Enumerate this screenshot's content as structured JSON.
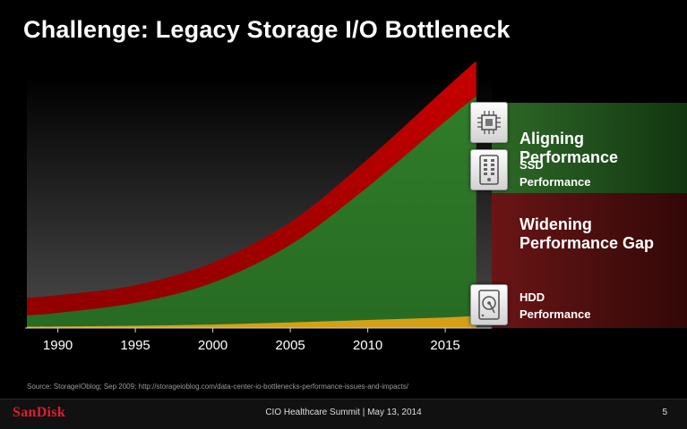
{
  "title": "Challenge: Legacy Storage I/O Bottleneck",
  "labels": {
    "aligning": "Aligning Performance",
    "ssd": "SSD Performance",
    "widening": "Widening Performance Gap",
    "hdd": "HDD Performance"
  },
  "icons": {
    "cpu": "cpu-icon",
    "ssd": "ssd-icon",
    "hdd": "hdd-icon"
  },
  "chart_data": {
    "type": "area",
    "x": [
      1988,
      1990,
      1995,
      2000,
      2005,
      2010,
      2015,
      2017
    ],
    "xticks": [
      "1990",
      "1995",
      "2000",
      "2005",
      "2010",
      "2015"
    ],
    "xlim": [
      1988,
      2018
    ],
    "ylim": [
      0,
      100
    ],
    "series": [
      {
        "name": "",
        "role": "cpu-gap",
        "color": "#c00000",
        "values": [
          12,
          13,
          17,
          26,
          42,
          67,
          95,
          106
        ]
      },
      {
        "name": "",
        "role": "ssd",
        "color": "#2f7a2a",
        "values": [
          5,
          6,
          10,
          18,
          33,
          56,
          82,
          92
        ]
      },
      {
        "name": "",
        "role": "hdd",
        "color": "#d4a017",
        "values": [
          0.5,
          0.6,
          0.9,
          1.4,
          2.2,
          3.2,
          4.2,
          4.8
        ]
      }
    ],
    "grid": false,
    "legend": "none"
  },
  "source": "Source: StorageIOblog; Sep 2009; http://storageioblog.com/data-center-io-bottlenecks-performance-issues-and-impacts/",
  "footer": {
    "logo": "SanDisk",
    "event": "CIO Healthcare Summit |  May 13, 2014",
    "page": "5"
  }
}
